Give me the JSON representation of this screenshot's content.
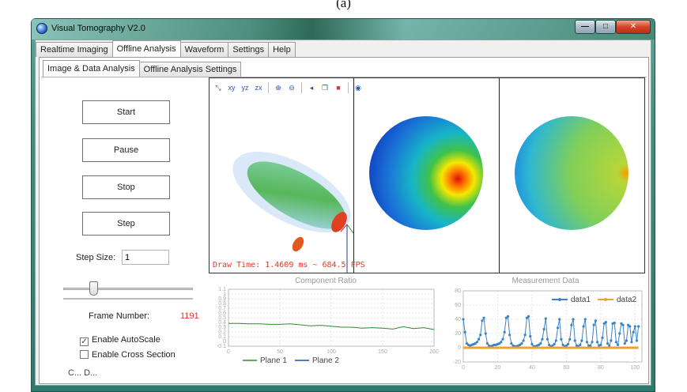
{
  "caption": "(a)",
  "window": {
    "title": "Visual Tomography V2.0",
    "min_glyph": "—",
    "max_glyph": "□",
    "close_glyph": "✕"
  },
  "main_tabs": [
    "Realtime Imaging",
    "Offline Analysis",
    "Waveform",
    "Settings",
    "Help"
  ],
  "active_main_tab": "Offline Analysis",
  "sub_tabs": [
    "Image & Data Analysis",
    "Offline Analysis Settings"
  ],
  "active_sub_tab": "Image & Data Analysis",
  "controls": {
    "start_label": "Start",
    "pause_label": "Pause",
    "stop_label": "Stop",
    "step_label": "Step",
    "step_size_label": "Step Size:",
    "step_size_value": "1",
    "frame_number_label": "Frame Number:",
    "frame_number_value": "1191",
    "autoscale_label": "Enable AutoScale",
    "autoscale_checked": true,
    "cross_section_label": "Enable Cross Section",
    "cross_section_checked": false,
    "clipped_text": "C... D...",
    "slider_fraction": 0.23
  },
  "viewer": {
    "draw_time": "Draw Time: 1.4609 ms ~ 684.5 FPS",
    "toolbar_icons": [
      "axes-icon",
      "xy-plane-icon",
      "yz-plane-icon",
      "zx-plane-icon",
      "zoom-in-icon",
      "zoom-out-icon",
      "speaker-icon",
      "copy-icon",
      "color-cube-icon",
      "camera-icon"
    ],
    "toolbar_glyphs": [
      "⤡",
      "xy",
      "yz",
      "zx",
      "⊕",
      "⊖",
      "◂",
      "❐",
      "■",
      "◉"
    ]
  },
  "chart_data": [
    {
      "type": "line",
      "title": "Component Ratio",
      "x_ticks": [
        "0",
        "50",
        "100",
        "150",
        "200"
      ],
      "y_ticks": [
        "1.1",
        "1",
        "0.9",
        "0.8",
        "0.7",
        "0.6",
        "0.5",
        "0.4",
        "0.3",
        "0.2",
        "0.1",
        "0",
        "-0.1"
      ],
      "xlim": [
        0,
        200
      ],
      "ylim": [
        -0.1,
        1.1
      ],
      "grid": true,
      "legend_position": "bottom",
      "series": [
        {
          "name": "Plane 1",
          "color": "#2e8b2e",
          "x": [
            0,
            10,
            20,
            30,
            40,
            50,
            60,
            70,
            80,
            90,
            100,
            110,
            120,
            130,
            140,
            150,
            160,
            170,
            180,
            190,
            195,
            200
          ],
          "y": [
            0.38,
            0.38,
            0.37,
            0.37,
            0.36,
            0.36,
            0.37,
            0.35,
            0.33,
            0.34,
            0.32,
            0.3,
            0.3,
            0.28,
            0.29,
            0.28,
            0.26,
            0.31,
            0.27,
            0.29,
            0.27,
            0.25
          ]
        },
        {
          "name": "Plane 2",
          "color": "#2a4aa8",
          "x": [],
          "y": []
        }
      ]
    },
    {
      "type": "line",
      "title": "Measurement Data",
      "x_ticks": [
        "0",
        "20",
        "40",
        "60",
        "80",
        "100"
      ],
      "y_ticks": [
        "80",
        "60",
        "40",
        "20",
        "0",
        "-20"
      ],
      "xlim": [
        0,
        104
      ],
      "ylim": [
        -20,
        80
      ],
      "grid": true,
      "legend_position": "top-right",
      "series": [
        {
          "name": "data1",
          "color": "#3b83c6",
          "x": [
            0,
            1,
            2,
            3,
            4,
            5,
            6,
            7,
            8,
            9,
            10,
            11,
            12,
            13,
            14,
            15,
            16,
            17,
            18,
            19,
            20,
            21,
            22,
            23,
            24,
            25,
            26,
            27,
            28,
            29,
            30,
            31,
            32,
            33,
            34,
            35,
            36,
            37,
            38,
            39,
            40,
            41,
            42,
            43,
            44,
            45,
            46,
            47,
            48,
            49,
            50,
            51,
            52,
            53,
            54,
            55,
            56,
            57,
            58,
            59,
            60,
            61,
            62,
            63,
            64,
            65,
            66,
            67,
            68,
            69,
            70,
            71,
            72,
            73,
            74,
            75,
            76,
            77,
            78,
            79,
            80,
            81,
            82,
            83,
            84,
            85,
            86,
            87,
            88,
            89,
            90,
            91,
            92,
            93,
            94,
            95,
            96,
            97,
            98,
            99,
            100,
            101,
            102
          ],
          "y": [
            40,
            22,
            6,
            4,
            3,
            4,
            5,
            6,
            8,
            12,
            18,
            38,
            42,
            20,
            6,
            3,
            2,
            3,
            4,
            4,
            5,
            6,
            8,
            12,
            22,
            42,
            44,
            18,
            6,
            3,
            2,
            2,
            3,
            4,
            6,
            10,
            18,
            42,
            44,
            16,
            5,
            2,
            2,
            3,
            4,
            6,
            12,
            26,
            41,
            12,
            4,
            2,
            3,
            5,
            10,
            28,
            40,
            12,
            4,
            2,
            3,
            5,
            12,
            32,
            40,
            10,
            3,
            2,
            4,
            10,
            30,
            40,
            8,
            3,
            3,
            8,
            32,
            38,
            8,
            3,
            4,
            14,
            34,
            36,
            6,
            3,
            10,
            34,
            35,
            8,
            4,
            20,
            34,
            32,
            6,
            10,
            32,
            30,
            8,
            22,
            30,
            10,
            30
          ]
        },
        {
          "name": "data2",
          "color": "#f0a030",
          "x": [
            0,
            102
          ],
          "y": [
            0,
            0
          ]
        }
      ]
    }
  ]
}
